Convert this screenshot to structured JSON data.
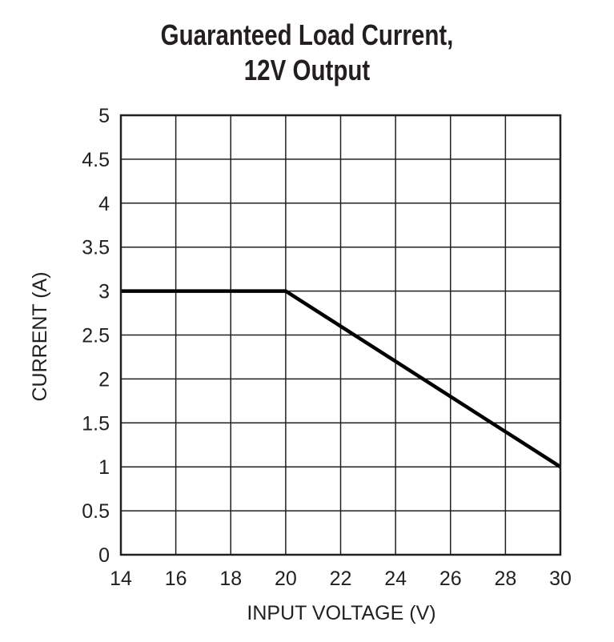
{
  "chart_data": {
    "type": "line",
    "title_line1": "Guaranteed Load Current,",
    "title_line2": "12V Output",
    "xlabel": "INPUT VOLTAGE (V)",
    "ylabel": "CURRENT (A)",
    "xlim": [
      14,
      30
    ],
    "ylim": [
      0,
      5
    ],
    "xticks": [
      14,
      16,
      18,
      20,
      22,
      24,
      26,
      28,
      30
    ],
    "yticks": [
      0,
      0.5,
      1,
      1.5,
      2,
      2.5,
      3,
      3.5,
      4,
      4.5,
      5
    ],
    "grid": true,
    "series": [
      {
        "x": [
          14,
          20,
          30
        ],
        "y": [
          3,
          3,
          1
        ],
        "color": "#000000"
      }
    ]
  }
}
